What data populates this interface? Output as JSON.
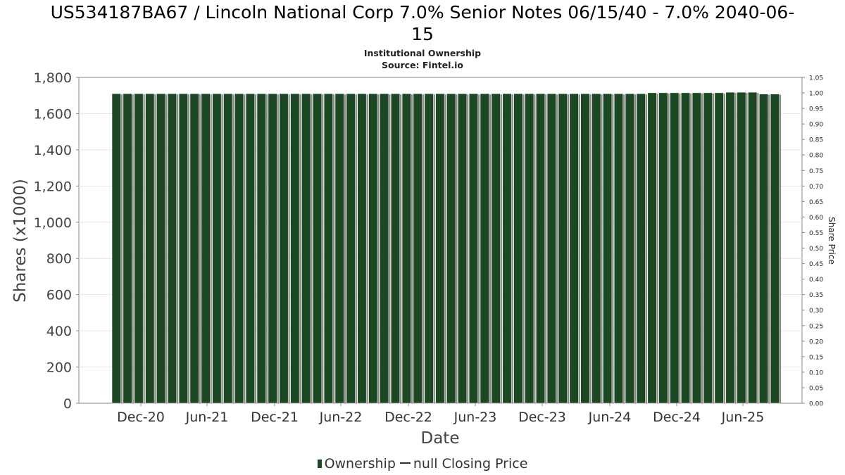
{
  "header": {
    "title_line1": "US534187BA67 / Lincoln National Corp 7.0% Senior Notes 06/15/40 - 7.0% 2040-06-",
    "title_line2": "15",
    "subtitle_line1": "Institutional Ownership",
    "subtitle_line2": "Source: Fintel.io"
  },
  "legend": {
    "ownership_label": "Ownership",
    "price_label": "null Closing Price"
  },
  "colors": {
    "bar": "#1b4723",
    "bar_shadow": "#8a8a8a",
    "grid": "#e6e6e6",
    "axis": "#888888"
  },
  "chart_data": {
    "type": "bar",
    "xlabel": "Date",
    "ylabel": "Shares (x1000)",
    "y2label": "Share Price",
    "ylim": [
      0,
      1800
    ],
    "y2lim": [
      0,
      1.05
    ],
    "yticks": [
      "0",
      "200",
      "400",
      "600",
      "800",
      "1,000",
      "1,200",
      "1,400",
      "1,600",
      "1,800"
    ],
    "y2ticks": [
      "0.00",
      "0.05",
      "0.10",
      "0.15",
      "0.20",
      "0.25",
      "0.30",
      "0.35",
      "0.40",
      "0.45",
      "0.50",
      "0.55",
      "0.60",
      "0.65",
      "0.70",
      "0.75",
      "0.80",
      "0.85",
      "0.90",
      "0.95",
      "1.00",
      "1.05"
    ],
    "xticks": [
      "Dec-20",
      "Jun-21",
      "Dec-21",
      "Jun-22",
      "Dec-22",
      "Jun-23",
      "Dec-23",
      "Jun-24",
      "Dec-24",
      "Jun-25"
    ],
    "grid": true,
    "legend_position": "bottom",
    "series": [
      {
        "name": "Ownership",
        "values": [
          1710,
          1710,
          1710,
          1710,
          1710,
          1710,
          1710,
          1710,
          1710,
          1710,
          1710,
          1710,
          1710,
          1710,
          1710,
          1710,
          1710,
          1710,
          1710,
          1710,
          1710,
          1710,
          1710,
          1710,
          1710,
          1710,
          1710,
          1710,
          1710,
          1710,
          1710,
          1710,
          1710,
          1710,
          1710,
          1710,
          1710,
          1710,
          1710,
          1710,
          1710,
          1710,
          1710,
          1710,
          1710,
          1710,
          1710,
          1710,
          1715,
          1715,
          1715,
          1715,
          1715,
          1715,
          1715,
          1718,
          1718,
          1718,
          1708,
          1708
        ]
      }
    ]
  }
}
